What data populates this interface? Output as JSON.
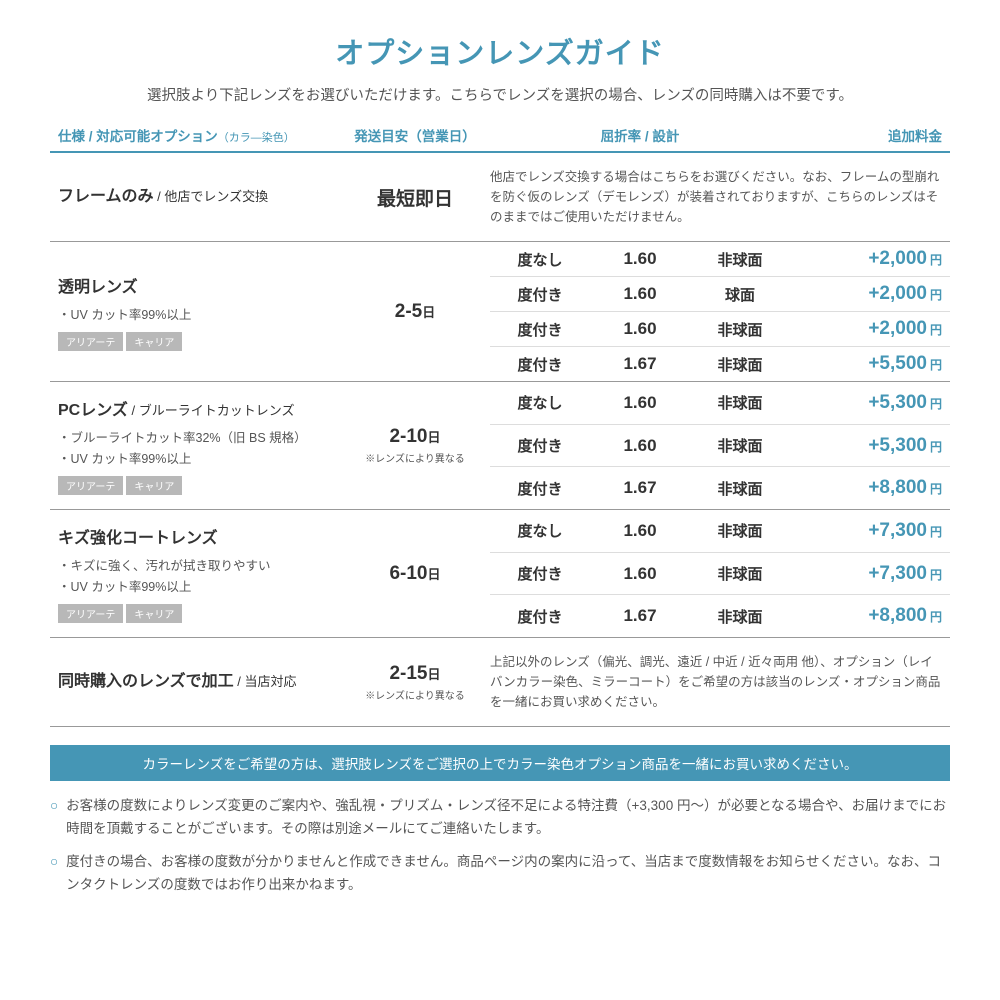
{
  "title": "オプションレンズガイド",
  "subtitle": "選択肢より下記レンズをお選びいただけます。こちらでレンズを選択の場合、レンズの同時購入は不要です。",
  "headers": {
    "spec": "仕様 / 対応可能オプション",
    "spec_small": "（カラ―染色）",
    "ship": "発送目安（営業日）",
    "refraction": "屈折率 / 設計",
    "fee": "追加料金"
  },
  "tag_labels": {
    "a": "アリアーテ",
    "c": "キャリア"
  },
  "yen_label": "円",
  "sections": [
    {
      "key": "frame",
      "heading_main": "フレームのみ",
      "heading_sub": " / 他店でレンズ交換",
      "ship_main": "最短即日",
      "desc": "他店でレンズ交換する場合はこちらをお選びください。なお、フレームの型崩れを防ぐ仮のレンズ（デモレンズ）が装着されておりますが、こちらのレンズはそのままではご使用いただけません。",
      "rows": []
    },
    {
      "key": "clear",
      "heading_main": "透明レンズ",
      "bullets": [
        "・UV カット率99%以上"
      ],
      "tags": true,
      "ship_main": "2-5",
      "ship_unit": "日",
      "rows": [
        {
          "degree": "度なし",
          "index": "1.60",
          "design": "非球面",
          "price": "+2,000"
        },
        {
          "degree": "度付き",
          "index": "1.60",
          "design": "球面",
          "price": "+2,000"
        },
        {
          "degree": "度付き",
          "index": "1.60",
          "design": "非球面",
          "price": "+2,000"
        },
        {
          "degree": "度付き",
          "index": "1.67",
          "design": "非球面",
          "price": "+5,500"
        }
      ]
    },
    {
      "key": "pc",
      "heading_main": "PCレンズ",
      "heading_sub": " / ブルーライトカットレンズ",
      "bullets": [
        "・ブルーライトカット率32%（旧 BS 規格）",
        "・UV カット率99%以上"
      ],
      "tags": true,
      "ship_main": "2-10",
      "ship_unit": "日",
      "ship_note": "※レンズにより異なる",
      "rows": [
        {
          "degree": "度なし",
          "index": "1.60",
          "design": "非球面",
          "price": "+5,300"
        },
        {
          "degree": "度付き",
          "index": "1.60",
          "design": "非球面",
          "price": "+5,300"
        },
        {
          "degree": "度付き",
          "index": "1.67",
          "design": "非球面",
          "price": "+8,800"
        }
      ]
    },
    {
      "key": "scratch",
      "heading_main": "キズ強化コートレンズ",
      "bullets": [
        "・キズに強く、汚れが拭き取りやすい",
        "・UV カット率99%以上"
      ],
      "tags": true,
      "ship_main": "6-10",
      "ship_unit": "日",
      "rows": [
        {
          "degree": "度なし",
          "index": "1.60",
          "design": "非球面",
          "price": "+7,300"
        },
        {
          "degree": "度付き",
          "index": "1.60",
          "design": "非球面",
          "price": "+7,300"
        },
        {
          "degree": "度付き",
          "index": "1.67",
          "design": "非球面",
          "price": "+8,800"
        }
      ]
    },
    {
      "key": "other",
      "heading_main": "同時購入のレンズで加工",
      "heading_sub": " / 当店対応",
      "ship_main": "2-15",
      "ship_unit": "日",
      "ship_note": "※レンズにより異なる",
      "desc": "上記以外のレンズ（偏光、調光、遠近 / 中近 / 近々両用 他）、オプション（レイバンカラー染色、ミラーコート）をご希望の方は該当のレンズ・オプション商品を一緒にお買い求めください。",
      "rows": []
    }
  ],
  "banner": "カラーレンズをご希望の方は、選択肢レンズをご選択の上でカラー染色オプション商品を一緒にお買い求めください。",
  "notes": [
    "お客様の度数によりレンズ変更のご案内や、強乱視・プリズム・レンズ径不足による特注費（+3,300 円～）が必要となる場合や、お届けまでにお時間を頂戴することがございます。その際は別途メールにてご連絡いたします。",
    "度付きの場合、お客様の度数が分かりませんと作成できません。商品ページ内の案内に沿って、当店まで度数情報をお知らせください。なお、コンタクトレンズの度数ではお作り出来かねます。"
  ]
}
